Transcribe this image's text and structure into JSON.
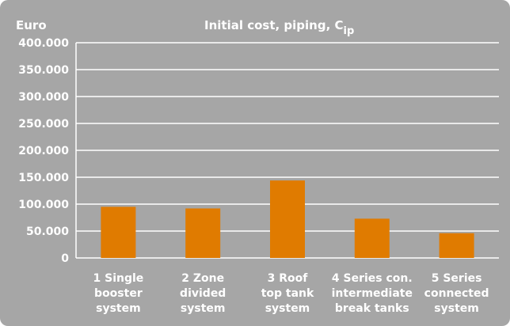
{
  "chart_data": {
    "type": "bar",
    "title": "Initial cost, piping, C",
    "title_subscript": "ip",
    "ylabel": "Euro",
    "xlabel": "",
    "ylim": [
      0,
      400000
    ],
    "yticks": [
      0,
      50000,
      100000,
      150000,
      200000,
      250000,
      300000,
      350000,
      400000
    ],
    "ytick_labels": [
      "0",
      "50.000",
      "100.000",
      "150.000",
      "200.000",
      "250.000",
      "300.000",
      "350.000",
      "400.000"
    ],
    "categories": [
      [
        "1 Single",
        "booster",
        "system"
      ],
      [
        "2 Zone",
        "divided",
        "system"
      ],
      [
        "3 Roof",
        "top tank",
        "system"
      ],
      [
        "4 Series con.",
        "intermediate",
        "break tanks"
      ],
      [
        "5 Series",
        "connected",
        "system"
      ]
    ],
    "values": [
      95000,
      92000,
      144000,
      73000,
      46000
    ],
    "grid": true,
    "colors": {
      "background": "#a6a6a6",
      "bar": "#e07b00",
      "grid": "#ffffff",
      "text": "#ffffff"
    }
  }
}
